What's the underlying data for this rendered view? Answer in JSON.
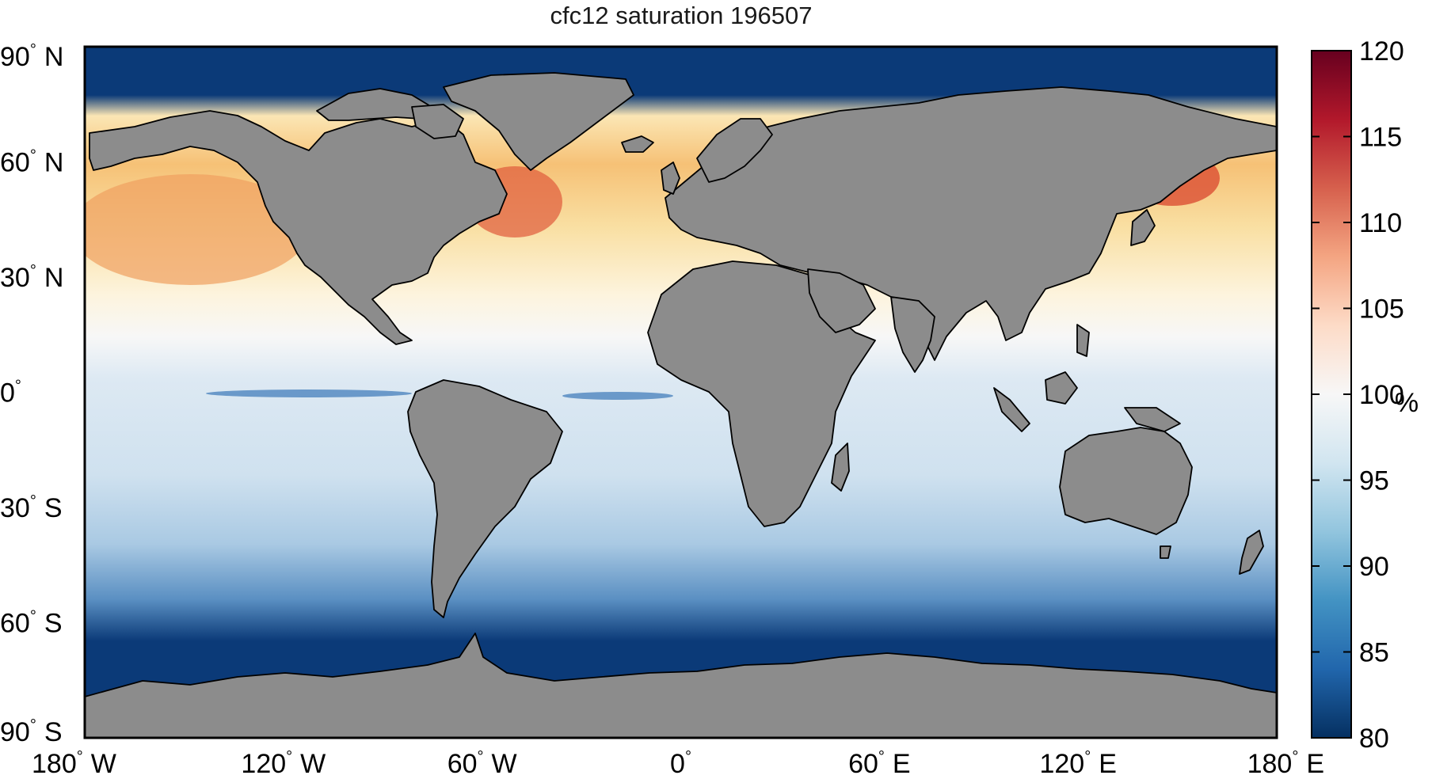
{
  "title": "cfc12 saturation 196507",
  "map": {
    "land_color": "#8c8c8c",
    "frame_color": "#000000",
    "lat_ticks": [
      {
        "value": 90,
        "deg": "90",
        "hemi": "N"
      },
      {
        "value": 60,
        "deg": "60",
        "hemi": "N"
      },
      {
        "value": 30,
        "deg": "30",
        "hemi": "N"
      },
      {
        "value": 0,
        "deg": "0",
        "hemi": ""
      },
      {
        "value": -30,
        "deg": "30",
        "hemi": "S"
      },
      {
        "value": -60,
        "deg": "60",
        "hemi": "S"
      },
      {
        "value": -90,
        "deg": "90",
        "hemi": "S"
      }
    ],
    "lon_ticks": [
      {
        "value": -180,
        "deg": "180",
        "hemi": "W"
      },
      {
        "value": -120,
        "deg": "120",
        "hemi": "W"
      },
      {
        "value": -60,
        "deg": "60",
        "hemi": "W"
      },
      {
        "value": 0,
        "deg": "0",
        "hemi": ""
      },
      {
        "value": 60,
        "deg": "60",
        "hemi": "E"
      },
      {
        "value": 120,
        "deg": "120",
        "hemi": "E"
      },
      {
        "value": 180,
        "deg": "180",
        "hemi": "E"
      }
    ]
  },
  "colorbar": {
    "unit": "%",
    "min": 80,
    "max": 120,
    "tick_values": [
      120,
      115,
      110,
      105,
      100,
      95,
      90,
      85,
      80
    ],
    "tick_labels": [
      "120",
      "115",
      "110",
      "105",
      "100",
      "95",
      "90",
      "85",
      "80"
    ],
    "colors": [
      "#053061",
      "#2166ac",
      "#4393c3",
      "#92c5de",
      "#d1e5f0",
      "#f7f7f7",
      "#fddbc7",
      "#f4a582",
      "#d6604d",
      "#b2182b",
      "#67001f"
    ]
  }
}
